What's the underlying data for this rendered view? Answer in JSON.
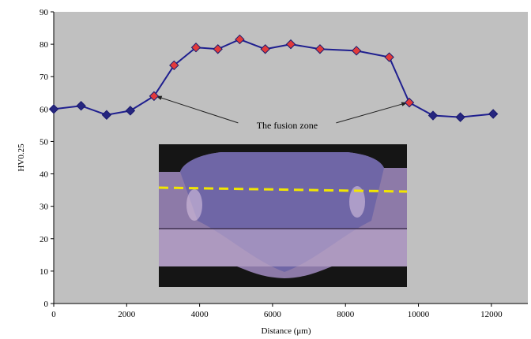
{
  "chart_data": {
    "type": "line",
    "xlabel": "Distance (μm)",
    "ylabel": "HV0.25",
    "xlim": [
      0,
      13000
    ],
    "ylim": [
      0,
      90
    ],
    "x_ticks": [
      "0",
      "2000",
      "4000",
      "6000",
      "8000",
      "10000",
      "12000"
    ],
    "y_ticks": [
      "0",
      "10",
      "20",
      "30",
      "40",
      "50",
      "60",
      "70",
      "80",
      "90"
    ],
    "grid": false,
    "plot_background": "#c0c0c0",
    "line_color": "#1f1f8f",
    "series": [
      {
        "x": [
          0,
          750,
          1450,
          2100,
          2750,
          3300,
          3900,
          4500,
          5100,
          5800,
          6500,
          7300,
          8300,
          9200,
          9750,
          10400,
          11150,
          12050
        ],
        "y": [
          60,
          61,
          58.2,
          59.5,
          64,
          73.5,
          79,
          78.5,
          81.5,
          78.5,
          80,
          78.5,
          78,
          76,
          62,
          58,
          57.5,
          58.5
        ],
        "marker_colors": [
          "navy",
          "navy",
          "navy",
          "navy",
          "red",
          "red",
          "red",
          "red",
          "red",
          "red",
          "red",
          "red",
          "red",
          "red",
          "red",
          "navy",
          "navy",
          "navy"
        ]
      }
    ],
    "annotations": [
      {
        "text": "The fusion zone",
        "x": 6400,
        "y": 55,
        "arrows_to": [
          [
            2800,
            64
          ],
          [
            9700,
            62
          ]
        ]
      }
    ],
    "inset_image": "weld cross-section micrograph with yellow dashed line"
  }
}
